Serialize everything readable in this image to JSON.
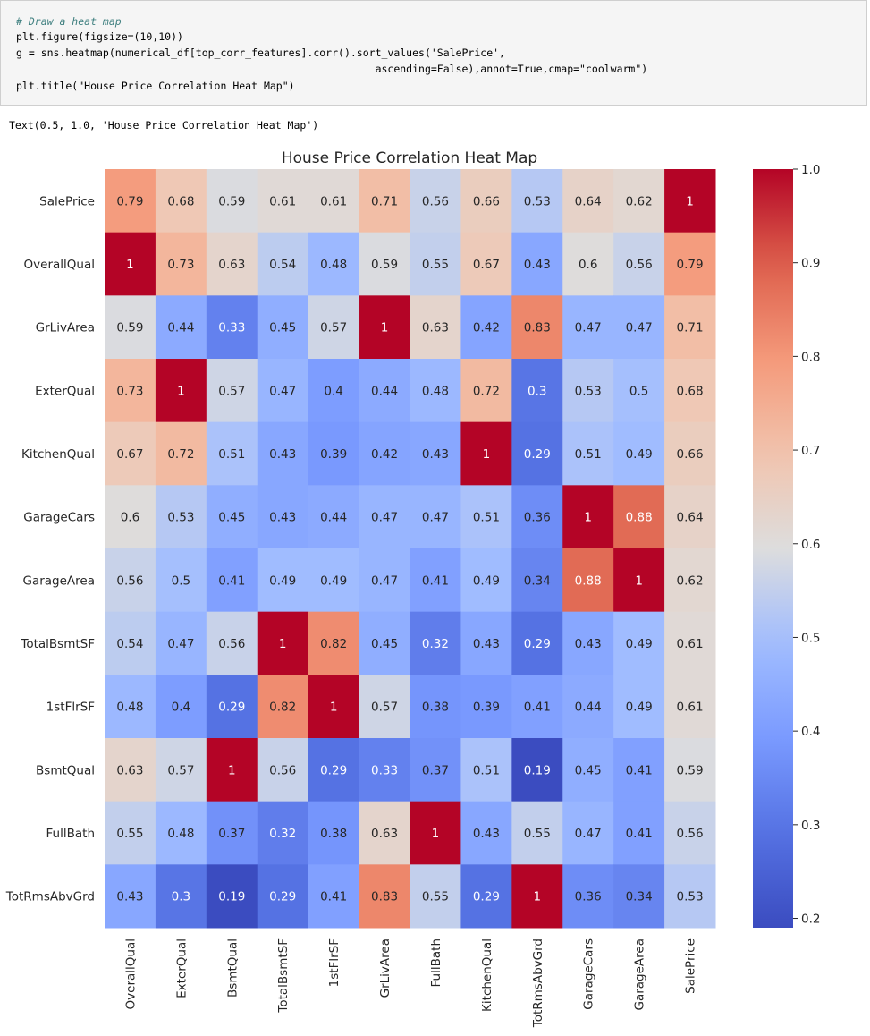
{
  "code_cell": {
    "lines": [
      "# Draw a heat map",
      "plt.figure(figsize=(10,10))",
      "g = sns.heatmap(numerical_df[top_corr_features].corr().sort_values('SalePrice',",
      "                                                          ascending=False),annot=True,cmap=\"coolwarm\")",
      "plt.title(\"House Price Correlation Heat Map\")"
    ]
  },
  "output_text": "Text(0.5, 1.0, 'House Price Correlation Heat Map')",
  "chart_data": {
    "type": "heatmap",
    "title": "House Price Correlation Heat Map",
    "colormap": "coolwarm",
    "rows": [
      "SalePrice",
      "OverallQual",
      "GrLivArea",
      "ExterQual",
      "KitchenQual",
      "GarageCars",
      "GarageArea",
      "TotalBsmtSF",
      "1stFlrSF",
      "BsmtQual",
      "FullBath",
      "TotRmsAbvGrd"
    ],
    "columns": [
      "OverallQual",
      "ExterQual",
      "BsmtQual",
      "TotalBsmtSF",
      "1stFlrSF",
      "GrLivArea",
      "FullBath",
      "KitchenQual",
      "TotRmsAbvGrd",
      "GarageCars",
      "GarageArea",
      "SalePrice"
    ],
    "values": [
      [
        0.79,
        0.68,
        0.59,
        0.61,
        0.61,
        0.71,
        0.56,
        0.66,
        0.53,
        0.64,
        0.62,
        1
      ],
      [
        1,
        0.73,
        0.63,
        0.54,
        0.48,
        0.59,
        0.55,
        0.67,
        0.43,
        0.6,
        0.56,
        0.79
      ],
      [
        0.59,
        0.44,
        0.33,
        0.45,
        0.57,
        1,
        0.63,
        0.42,
        0.83,
        0.47,
        0.47,
        0.71
      ],
      [
        0.73,
        1,
        0.57,
        0.47,
        0.4,
        0.44,
        0.48,
        0.72,
        0.3,
        0.53,
        0.5,
        0.68
      ],
      [
        0.67,
        0.72,
        0.51,
        0.43,
        0.39,
        0.42,
        0.43,
        1,
        0.29,
        0.51,
        0.49,
        0.66
      ],
      [
        0.6,
        0.53,
        0.45,
        0.43,
        0.44,
        0.47,
        0.47,
        0.51,
        0.36,
        1,
        0.88,
        0.64
      ],
      [
        0.56,
        0.5,
        0.41,
        0.49,
        0.49,
        0.47,
        0.41,
        0.49,
        0.34,
        0.88,
        1,
        0.62
      ],
      [
        0.54,
        0.47,
        0.56,
        1,
        0.82,
        0.45,
        0.32,
        0.43,
        0.29,
        0.43,
        0.49,
        0.61
      ],
      [
        0.48,
        0.4,
        0.29,
        0.82,
        1,
        0.57,
        0.38,
        0.39,
        0.41,
        0.44,
        0.49,
        0.61
      ],
      [
        0.63,
        0.57,
        1,
        0.56,
        0.29,
        0.33,
        0.37,
        0.51,
        0.19,
        0.45,
        0.41,
        0.59
      ],
      [
        0.55,
        0.48,
        0.37,
        0.32,
        0.38,
        0.63,
        1,
        0.43,
        0.55,
        0.47,
        0.41,
        0.56
      ],
      [
        0.43,
        0.3,
        0.19,
        0.29,
        0.41,
        0.83,
        0.55,
        0.29,
        1,
        0.36,
        0.34,
        0.53
      ]
    ],
    "colorbar": {
      "min": 0.19,
      "max": 1.0,
      "ticks": [
        "1.0",
        "0.9",
        "0.8",
        "0.7",
        "0.6",
        "0.5",
        "0.4",
        "0.3",
        "0.2"
      ]
    }
  }
}
